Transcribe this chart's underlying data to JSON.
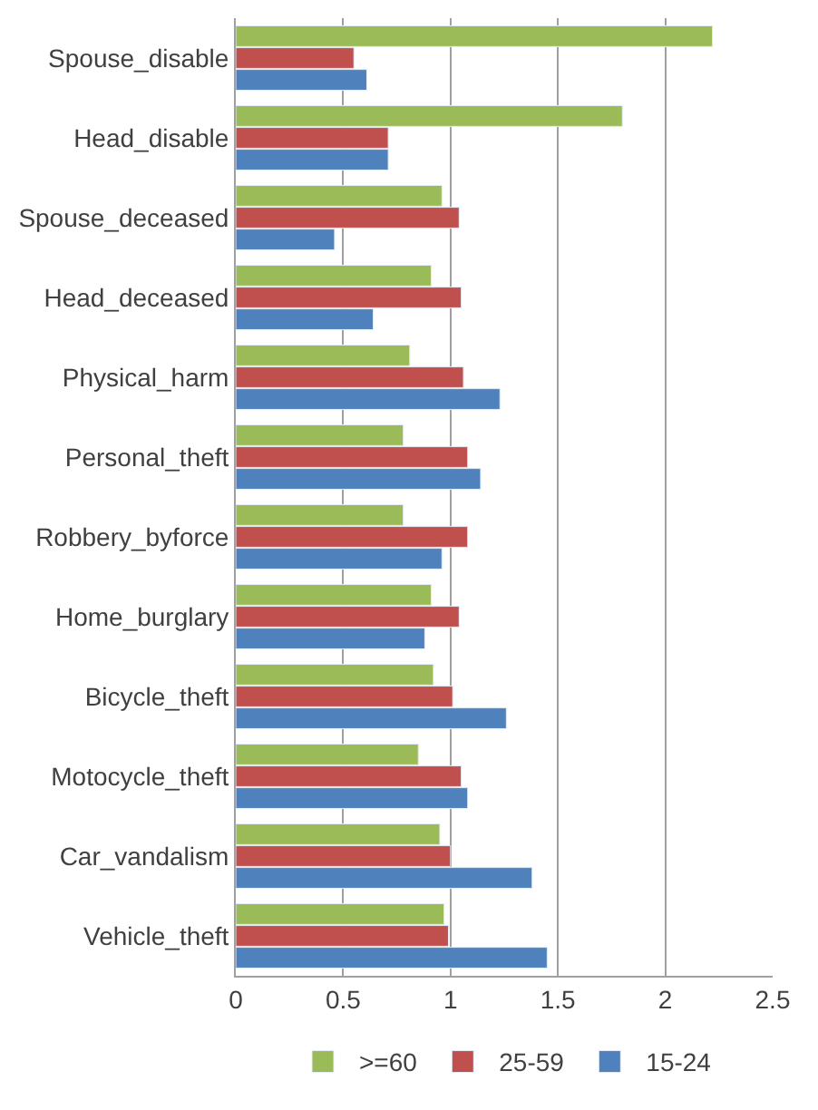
{
  "chart_data": {
    "type": "bar",
    "orientation": "horizontal",
    "categories": [
      "Spouse_disable",
      "Head_disable",
      "Spouse_deceased",
      "Head_deceased",
      "Physical_harm",
      "Personal_theft",
      "Robbery_byforce",
      "Home_burglary",
      "Bicycle_theft",
      "Motocycle_theft",
      "Car_vandalism",
      "Vehicle_theft"
    ],
    "series": [
      {
        "name": ">=60",
        "color": "#9bbb59",
        "values": [
          2.22,
          1.8,
          0.96,
          0.91,
          0.81,
          0.78,
          0.78,
          0.91,
          0.92,
          0.85,
          0.95,
          0.97
        ]
      },
      {
        "name": "25-59",
        "color": "#c0504d",
        "values": [
          0.55,
          0.71,
          1.04,
          1.05,
          1.06,
          1.08,
          1.08,
          1.04,
          1.01,
          1.05,
          1.0,
          0.99
        ]
      },
      {
        "name": "15-24",
        "color": "#4f81bd",
        "values": [
          0.61,
          0.71,
          0.46,
          0.64,
          1.23,
          1.14,
          0.96,
          0.88,
          1.26,
          1.08,
          1.38,
          1.45
        ]
      }
    ],
    "xlim": [
      0,
      2.5
    ],
    "xticks": [
      0,
      0.5,
      1,
      1.5,
      2,
      2.5
    ],
    "grid": "x",
    "legend": "bottom"
  }
}
